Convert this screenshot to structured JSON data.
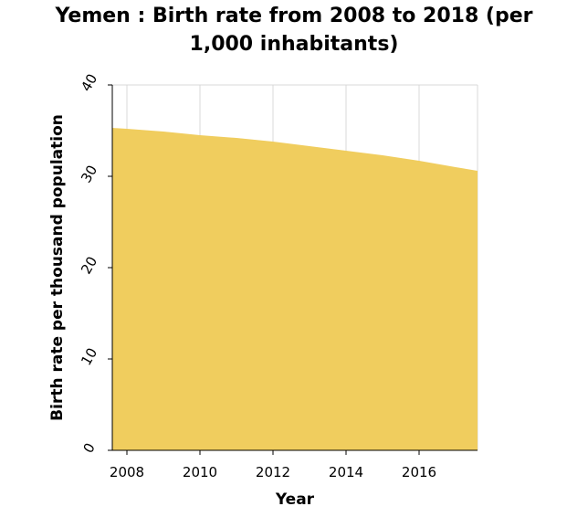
{
  "chart_data": {
    "type": "area",
    "title": "Yemen : Birth rate from 2008 to 2018 (per 1,000 inhabitants)",
    "title_lines": [
      "Yemen : Birth rate from 2008 to 2018 (per",
      "1,000 inhabitants)"
    ],
    "xlabel": "Year",
    "ylabel": "Birth rate per thousand population",
    "x_ticks": [
      2008,
      2010,
      2012,
      2014,
      2016
    ],
    "y_ticks": [
      0,
      10,
      20,
      30,
      40
    ],
    "xlim": [
      2007.6,
      2017.6
    ],
    "ylim": [
      0,
      40
    ],
    "grid": true,
    "fill_color": "#f0cd5e",
    "grid_color": "#d9d9d9",
    "series": [
      {
        "x": [
          2007.6,
          2008,
          2009,
          2010,
          2011,
          2012,
          2013,
          2014,
          2015,
          2016,
          2017,
          2017.6
        ],
        "values": [
          35.3,
          35.2,
          34.9,
          34.5,
          34.2,
          33.8,
          33.3,
          32.8,
          32.3,
          31.7,
          31.0,
          30.6
        ]
      }
    ]
  }
}
